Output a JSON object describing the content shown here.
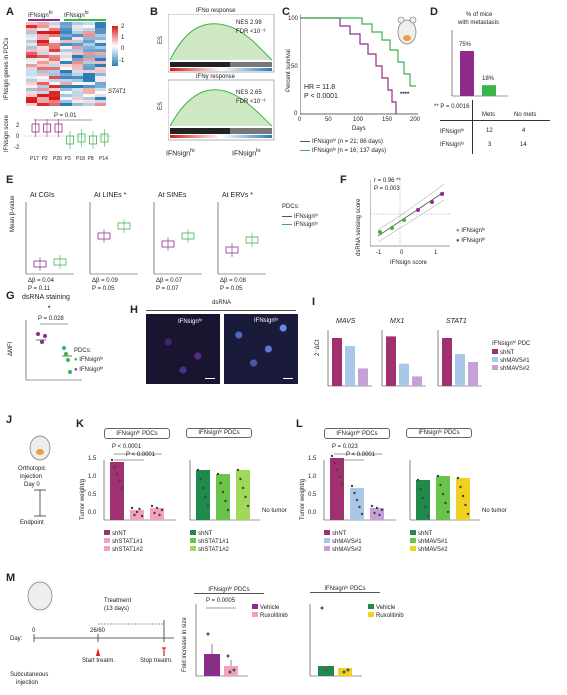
{
  "panels": {
    "A": "A",
    "B": "B",
    "C": "C",
    "D": "D",
    "E": "E",
    "F": "F",
    "G": "G",
    "H": "H",
    "I": "I",
    "J": "J",
    "K": "K",
    "L": "L",
    "M": "M"
  },
  "A": {
    "group_hi": "IFNsign",
    "group_hi_sup": "hi",
    "group_lo": "IFNsign",
    "group_lo_sup": "lo",
    "ylabel": "IFNsign genes in PDCs",
    "gene_label": "STAT1",
    "colorbar_ticks": [
      "2",
      "1",
      "0",
      "-1"
    ],
    "pvalue": "P = 0.01",
    "score_label": "IFNsign score",
    "score_ticks": [
      "2",
      "0",
      "-2"
    ],
    "samples": [
      "P17",
      "P2",
      "P20",
      "P3",
      "P18",
      "P8",
      "P14"
    ],
    "colors": {
      "high": "#d7191c",
      "low": "#2c7bb6",
      "hi_group": "#8e2c8e",
      "lo_group": "#3cb44b"
    }
  },
  "B": {
    "plot1_title": "IFNα response",
    "plot1_nes": "NES  2.98",
    "plot1_fdr": "FDR <10⁻³",
    "plot2_title": "IFNγ response",
    "plot2_nes": "NES  2.65",
    "plot2_fdr": "FDR <10⁻³",
    "ylabel": "ES",
    "xlabel_left": "IFNsign",
    "xlabel_left_sup": "hi",
    "xlabel_right": "IFNsign",
    "xlabel_right_sup": "lo"
  },
  "C": {
    "ylabel": "Percent survival",
    "xlabel": "Days",
    "x_ticks": [
      "0",
      "50",
      "100",
      "150",
      "200"
    ],
    "y_ticks": [
      "100",
      "50",
      "0"
    ],
    "hr": "HR = 11.8",
    "pvalue": "P < 0.0001",
    "stars": "****",
    "legend_hi": "IFNsignʰⁱ (n = 21; 86 days)",
    "legend_lo": "IFNsignˡᵒ (n = 16; 137 days)"
  },
  "D": {
    "title": "% of mice",
    "title2": "with metastasis",
    "bar_hi_label": "75%",
    "bar_lo_label": "18%",
    "pvalue": "** P = 0.0016",
    "col_mets": "Mets",
    "col_nomets": "No mets",
    "row_hi": "IFNsignʰⁱ",
    "row_lo": "IFNsignˡᵒ",
    "table": [
      [
        "12",
        "4"
      ],
      [
        "3",
        "14"
      ]
    ]
  },
  "E": {
    "titles": [
      "At CGIs",
      "At LINEs *",
      "At SINEs",
      "At ERVs *"
    ],
    "ylabel": "Mean β-value",
    "deltas": [
      "Δβ = 0.04",
      "Δβ = 0.09",
      "Δβ = 0.07",
      "Δβ = 0.08"
    ],
    "pvals": [
      "P = 0.11",
      "P = 0.05",
      "P = 0.07",
      "P = 0.05"
    ],
    "legend_title": "PDCs:",
    "legend_hi": "IFNsignʰⁱ",
    "legend_lo": "IFNsignˡᵒ"
  },
  "F": {
    "r": "r = 0.96 **",
    "pvalue": "P = 0.003",
    "ylabel": "dsRNA sensing score",
    "xlabel": "IFNsign score",
    "x_ticks": [
      "-1",
      "0",
      "1"
    ],
    "legend_lo": "IFNsignˡᵒ",
    "legend_hi": "IFNsignʰⁱ"
  },
  "G": {
    "title": "dsRNA staining",
    "pvalue": "P = 0.028",
    "star": "*",
    "ylabel": "ΔMFI",
    "legend_title": "PDCs:",
    "legend_lo": "IFNsignˡᵒ",
    "legend_hi": "IFNsignʰⁱ"
  },
  "H": {
    "header": "dsRNA",
    "label_left": "IFNsignʰⁱ",
    "label_right": "IFNsignˡᵒ"
  },
  "I": {
    "genes": [
      "MAVS",
      "MX1",
      "STAT1"
    ],
    "ylabel": "2⁻ΔCt",
    "legend_title": "IFNsignʰⁱ PDC",
    "legend": [
      "shNT",
      "shMAVS#1",
      "shMAVS#2"
    ]
  },
  "J": {
    "line1": "Orthotopic",
    "line2": "injection",
    "line3": "Day 0",
    "endpoint": "Endpoint"
  },
  "K": {
    "header_hi": "IFNsignʰⁱ PDCs",
    "header_lo": "IFNsignˡᵒ PDCs",
    "p1": "P < 0.0001",
    "p2": "P < 0.0001",
    "ylabel": "Tumor weight/g",
    "y_ticks": [
      "1.5",
      "1.0",
      "0.5",
      "0.0"
    ],
    "legend": [
      "shNT",
      "shSTAT1#1",
      "shSTAT1#2"
    ],
    "no_tumor": "No tumor"
  },
  "L": {
    "header_hi": "IFNsignʰⁱ PDCs",
    "header_lo": "IFNsignˡᵒ PDCs",
    "p1": "P = 0.023",
    "p2": "P < 0.0001",
    "ylabel": "Tumor weight/g",
    "y_ticks": [
      "1.5",
      "1.0",
      "0.5",
      "0.0"
    ],
    "legend": [
      "shNT",
      "shMAVS#1",
      "shMAVS#2"
    ],
    "no_tumor": "No tumor"
  },
  "M": {
    "treatment": "Treatment",
    "treatment_days": "(13 days)",
    "day_label": "Day:",
    "day0": "0",
    "day_start": "26/60",
    "start": "Start treatm.",
    "stop": "Stop treatm.",
    "subq1": "Subcutaneous",
    "subq2": "injection",
    "header_hi": "IFNsignʰⁱ PDCs",
    "header_lo": "IFNsignˡᵒ PDCs",
    "pvalue": "P = 0.0005",
    "ylabel": "Fold increase in size",
    "legend": [
      "Vehicle",
      "Ruxolitinib"
    ]
  }
}
